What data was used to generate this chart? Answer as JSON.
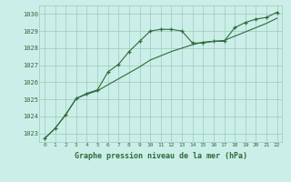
{
  "title": "Graphe pression niveau de la mer (hPa)",
  "bg_color": "#cceee8",
  "grid_color": "#99ccbb",
  "line_color": "#2d6b3c",
  "xlim": [
    -0.5,
    22.5
  ],
  "ylim": [
    1022.5,
    1030.5
  ],
  "yticks": [
    1023,
    1024,
    1025,
    1026,
    1027,
    1028,
    1029,
    1030
  ],
  "xticks": [
    0,
    1,
    2,
    3,
    4,
    5,
    6,
    7,
    8,
    9,
    10,
    11,
    12,
    13,
    14,
    15,
    16,
    17,
    18,
    19,
    20,
    21,
    22
  ],
  "line1_x": [
    0,
    1,
    2,
    3,
    4,
    5,
    6,
    7,
    8,
    9,
    10,
    11,
    12,
    13,
    14,
    15,
    16,
    17,
    18,
    19,
    20,
    21,
    22
  ],
  "line1_y": [
    1022.7,
    1023.3,
    1024.1,
    1025.05,
    1025.35,
    1025.55,
    1026.6,
    1027.05,
    1027.8,
    1028.4,
    1029.0,
    1029.1,
    1029.1,
    1029.0,
    1028.3,
    1028.3,
    1028.4,
    1028.4,
    1029.2,
    1029.5,
    1029.7,
    1029.8,
    1030.1
  ],
  "line2_x": [
    0,
    1,
    2,
    3,
    4,
    5,
    6,
    7,
    8,
    9,
    10,
    11,
    12,
    13,
    14,
    15,
    16,
    17,
    18,
    19,
    20,
    21,
    22
  ],
  "line2_y": [
    1022.7,
    1023.3,
    1024.1,
    1025.05,
    1025.3,
    1025.5,
    1025.85,
    1026.2,
    1026.55,
    1026.9,
    1027.3,
    1027.55,
    1027.8,
    1028.0,
    1028.2,
    1028.35,
    1028.4,
    1028.45,
    1028.7,
    1028.95,
    1029.2,
    1029.45,
    1029.75
  ]
}
